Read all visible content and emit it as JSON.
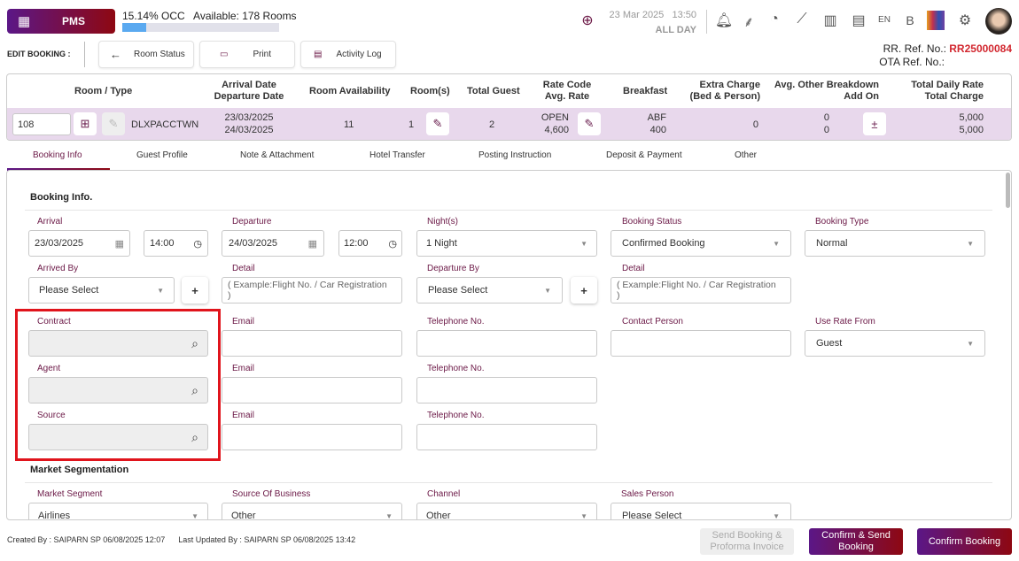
{
  "header": {
    "app": "PMS",
    "occ": "15.14% OCC",
    "available": "Available: 178 Rooms",
    "occ_percent": 15.14,
    "date": "23 Mar 2025",
    "time": "13:50",
    "period": "ALL DAY",
    "lang": "EN",
    "font_size": "B"
  },
  "toolbar": {
    "title": "EDIT BOOKING :",
    "room_status": "Room Status",
    "print": "Print",
    "activity_log": "Activity Log"
  },
  "refs": {
    "rr_label": "RR. Ref. No.:",
    "rr_value": "RR25000084",
    "ota_label": "OTA Ref. No.:"
  },
  "room_table": {
    "headers": {
      "room_type": "Room / Type",
      "arrival": "Arrival Date",
      "departure": "Departure Date",
      "availability": "Room Availability",
      "rooms": "Room(s)",
      "guest": "Total Guest",
      "rate_code": "Rate Code",
      "avg_rate": "Avg. Rate",
      "breakfast": "Breakfast",
      "extra1": "Extra Charge",
      "extra2": "(Bed & Person)",
      "other1": "Avg. Other Breakdown",
      "other2": "Add On",
      "daily": "Total Daily Rate",
      "total": "Total Charge"
    },
    "row": {
      "room": "108",
      "type": "DLXPACCTWN",
      "arrival": "23/03/2025",
      "departure": "24/03/2025",
      "availability": "11",
      "rooms": "1",
      "guest": "2",
      "rate_code": "OPEN",
      "avg_rate": "4,600",
      "breakfast_code": "ABF",
      "breakfast": "400",
      "extra": "0",
      "other": "0",
      "add_on": "0",
      "daily": "5,000",
      "total": "5,000"
    }
  },
  "tabs": [
    "Booking Info",
    "Guest Profile",
    "Note & Attachment",
    "Hotel Transfer",
    "Posting Instruction",
    "Deposit & Payment",
    "Other"
  ],
  "booking_info": {
    "title": "Booking Info.",
    "arrival_label": "Arrival",
    "arrival_date": "23/03/2025",
    "arrival_time": "14:00",
    "departure_label": "Departure",
    "departure_date": "24/03/2025",
    "departure_time": "12:00",
    "nights_label": "Night(s)",
    "nights": "1 Night",
    "status_label": "Booking Status",
    "status": "Confirmed Booking",
    "type_label": "Booking Type",
    "type": "Normal",
    "arrived_by_label": "Arrived By",
    "arrived_by": "Please Select",
    "detail_label": "Detail",
    "detail_placeholder": "( Example:Flight No. / Car Registration )",
    "departure_by_label": "Departure By",
    "departure_by": "Please Select",
    "contract_label": "Contract",
    "agent_label": "Agent",
    "source_label": "Source",
    "email_label": "Email",
    "tel_label": "Telephone No.",
    "contact_label": "Contact Person",
    "use_rate_label": "Use Rate From",
    "use_rate": "Guest",
    "plus": "+"
  },
  "market": {
    "title": "Market Segmentation",
    "segment_label": "Market Segment",
    "segment": "Airlines",
    "sob_label": "Source Of Business",
    "sob": "Other",
    "channel_label": "Channel",
    "channel": "Other",
    "sales_label": "Sales Person",
    "sales": "Please Select"
  },
  "footer": {
    "created": "Created By : SAIPARN SP 06/08/2025 12:07",
    "updated": "Last Updated By : SAIPARN SP 06/08/2025 13:42",
    "send": "Send Booking & Proforma Invoice",
    "confirm_send": "Confirm & Send Booking",
    "confirm": "Confirm Booking"
  },
  "colors": {
    "brand_start": "#5b1787",
    "brand_end": "#8e0812",
    "ref": "#d2272f",
    "highlight": "#e0141c",
    "row_bg": "#e8d8ec"
  }
}
